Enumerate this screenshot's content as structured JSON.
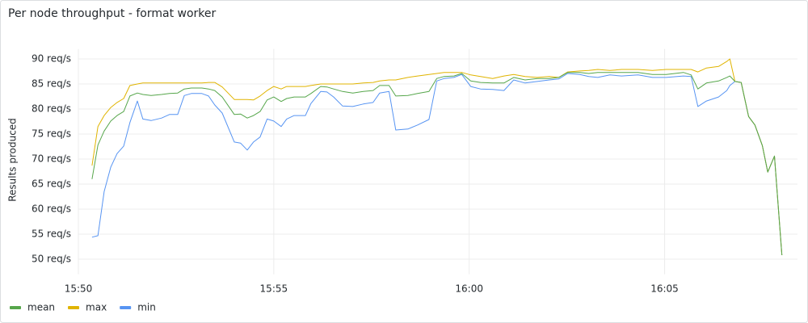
{
  "chart_data": {
    "type": "line",
    "title": "Per node throughput - format worker",
    "y_label": "Results produced",
    "x": [
      950.35,
      950.5,
      950.66,
      950.83,
      950.99,
      951.16,
      951.32,
      951.51,
      951.65,
      951.86,
      952.13,
      952.33,
      952.54,
      952.71,
      952.89,
      953.16,
      953.33,
      953.49,
      953.68,
      953.99,
      954.15,
      954.32,
      954.48,
      954.65,
      954.83,
      955.0,
      955.19,
      955.33,
      955.52,
      955.81,
      955.95,
      956.2,
      956.36,
      956.53,
      956.76,
      957.02,
      957.29,
      957.54,
      957.71,
      957.95,
      958.12,
      958.43,
      958.68,
      958.97,
      959.17,
      959.36,
      959.61,
      959.81,
      960.04,
      960.29,
      960.6,
      960.89,
      961.14,
      961.43,
      961.74,
      962.05,
      962.29,
      962.52,
      962.83,
      963.06,
      963.29,
      963.6,
      963.9,
      964.32,
      964.69,
      965.04,
      965.48,
      965.68,
      965.85,
      966.07,
      966.38,
      966.59,
      966.67,
      966.8,
      966.96,
      967.15,
      967.31,
      967.5,
      967.64,
      967.81,
      968.0
    ],
    "series": [
      {
        "name": "mean",
        "color": "#56a64b",
        "values": [
          66,
          72.8,
          75.6,
          77.6,
          78.7,
          79.5,
          82.6,
          83.2,
          82.9,
          82.7,
          82.9,
          83.1,
          83.2,
          84,
          84.2,
          84.2,
          84,
          83.7,
          82.4,
          78.9,
          79,
          78.2,
          78.7,
          79.5,
          81.8,
          82.4,
          81.5,
          82.1,
          82.4,
          82.4,
          83.1,
          84.5,
          84.4,
          84,
          83.5,
          83.2,
          83.5,
          83.7,
          84.7,
          84.7,
          82.6,
          82.7,
          83.1,
          83.5,
          86.1,
          86.5,
          86.6,
          87.1,
          85.6,
          85.3,
          85.2,
          85.2,
          86.3,
          85.8,
          86.1,
          86.1,
          86.3,
          87.3,
          87.3,
          87.1,
          87.3,
          87.3,
          87.3,
          87.3,
          86.9,
          86.9,
          87.3,
          86.8,
          84,
          85.2,
          85.6,
          86.3,
          86.6,
          85.5,
          85.3,
          78.5,
          76.8,
          72.7,
          67.4,
          70.6,
          50.8
        ]
      },
      {
        "name": "max",
        "color": "#e0b400",
        "values": [
          68.7,
          76.5,
          78.7,
          80.3,
          81.3,
          82.1,
          84.7,
          85,
          85.2,
          85.2,
          85.2,
          85.2,
          85.2,
          85.2,
          85.2,
          85.2,
          85.3,
          85.3,
          84.4,
          81.9,
          81.9,
          81.9,
          81.8,
          82.6,
          83.7,
          84.5,
          84,
          84.5,
          84.5,
          84.5,
          84.7,
          85,
          85,
          85,
          85,
          85,
          85.2,
          85.3,
          85.6,
          85.8,
          85.8,
          86.3,
          86.6,
          86.9,
          87.1,
          87.3,
          87.3,
          87.3,
          86.8,
          86.5,
          86.1,
          86.6,
          86.9,
          86.5,
          86.3,
          86.5,
          86.3,
          87.4,
          87.6,
          87.7,
          87.9,
          87.7,
          87.9,
          87.9,
          87.7,
          87.9,
          87.9,
          87.9,
          87.4,
          88.2,
          88.5,
          89.5,
          90,
          85.5,
          85.3,
          78.5,
          76.8,
          72.7,
          67.4,
          70.6,
          50.8
        ]
      },
      {
        "name": "min",
        "color": "#5794f2",
        "values": [
          54.4,
          54.7,
          63.5,
          68.4,
          71.1,
          72.6,
          77.3,
          81.6,
          78,
          77.7,
          78.2,
          78.9,
          78.9,
          82.7,
          83.1,
          83.1,
          82.6,
          80.8,
          79.2,
          73.4,
          73.2,
          71.8,
          73.4,
          74.4,
          78,
          77.6,
          76.5,
          78,
          78.7,
          78.7,
          81.1,
          83.5,
          83.4,
          82.4,
          80.6,
          80.5,
          81,
          81.3,
          83.2,
          83.5,
          75.8,
          76,
          76.8,
          77.9,
          85.6,
          86.1,
          86.3,
          86.9,
          84.5,
          84,
          83.9,
          83.7,
          85.8,
          85.2,
          85.5,
          85.8,
          86,
          87.1,
          86.9,
          86.5,
          86.3,
          86.8,
          86.6,
          86.8,
          86.3,
          86.3,
          86.6,
          86.5,
          80.5,
          81.6,
          82.4,
          83.7,
          84.7,
          85.5,
          85.3,
          78.5,
          76.8,
          72.7,
          67.4,
          70.6,
          50.8
        ]
      }
    ],
    "xlim": [
      950,
      968.4
    ],
    "xticks": [
      {
        "value": 950,
        "label": "15:50"
      },
      {
        "value": 955,
        "label": "15:55"
      },
      {
        "value": 960,
        "label": "16:00"
      },
      {
        "value": 965,
        "label": "16:05"
      }
    ],
    "ylim": [
      47,
      92
    ],
    "yticks": [
      {
        "value": 50,
        "label": "50 req/s"
      },
      {
        "value": 55,
        "label": "55 req/s"
      },
      {
        "value": 60,
        "label": "60 req/s"
      },
      {
        "value": 65,
        "label": "65 req/s"
      },
      {
        "value": 70,
        "label": "70 req/s"
      },
      {
        "value": 75,
        "label": "75 req/s"
      },
      {
        "value": 80,
        "label": "80 req/s"
      },
      {
        "value": 85,
        "label": "85 req/s"
      },
      {
        "value": 90,
        "label": "90 req/s"
      }
    ],
    "grid": true,
    "legend": "bottom-left"
  }
}
